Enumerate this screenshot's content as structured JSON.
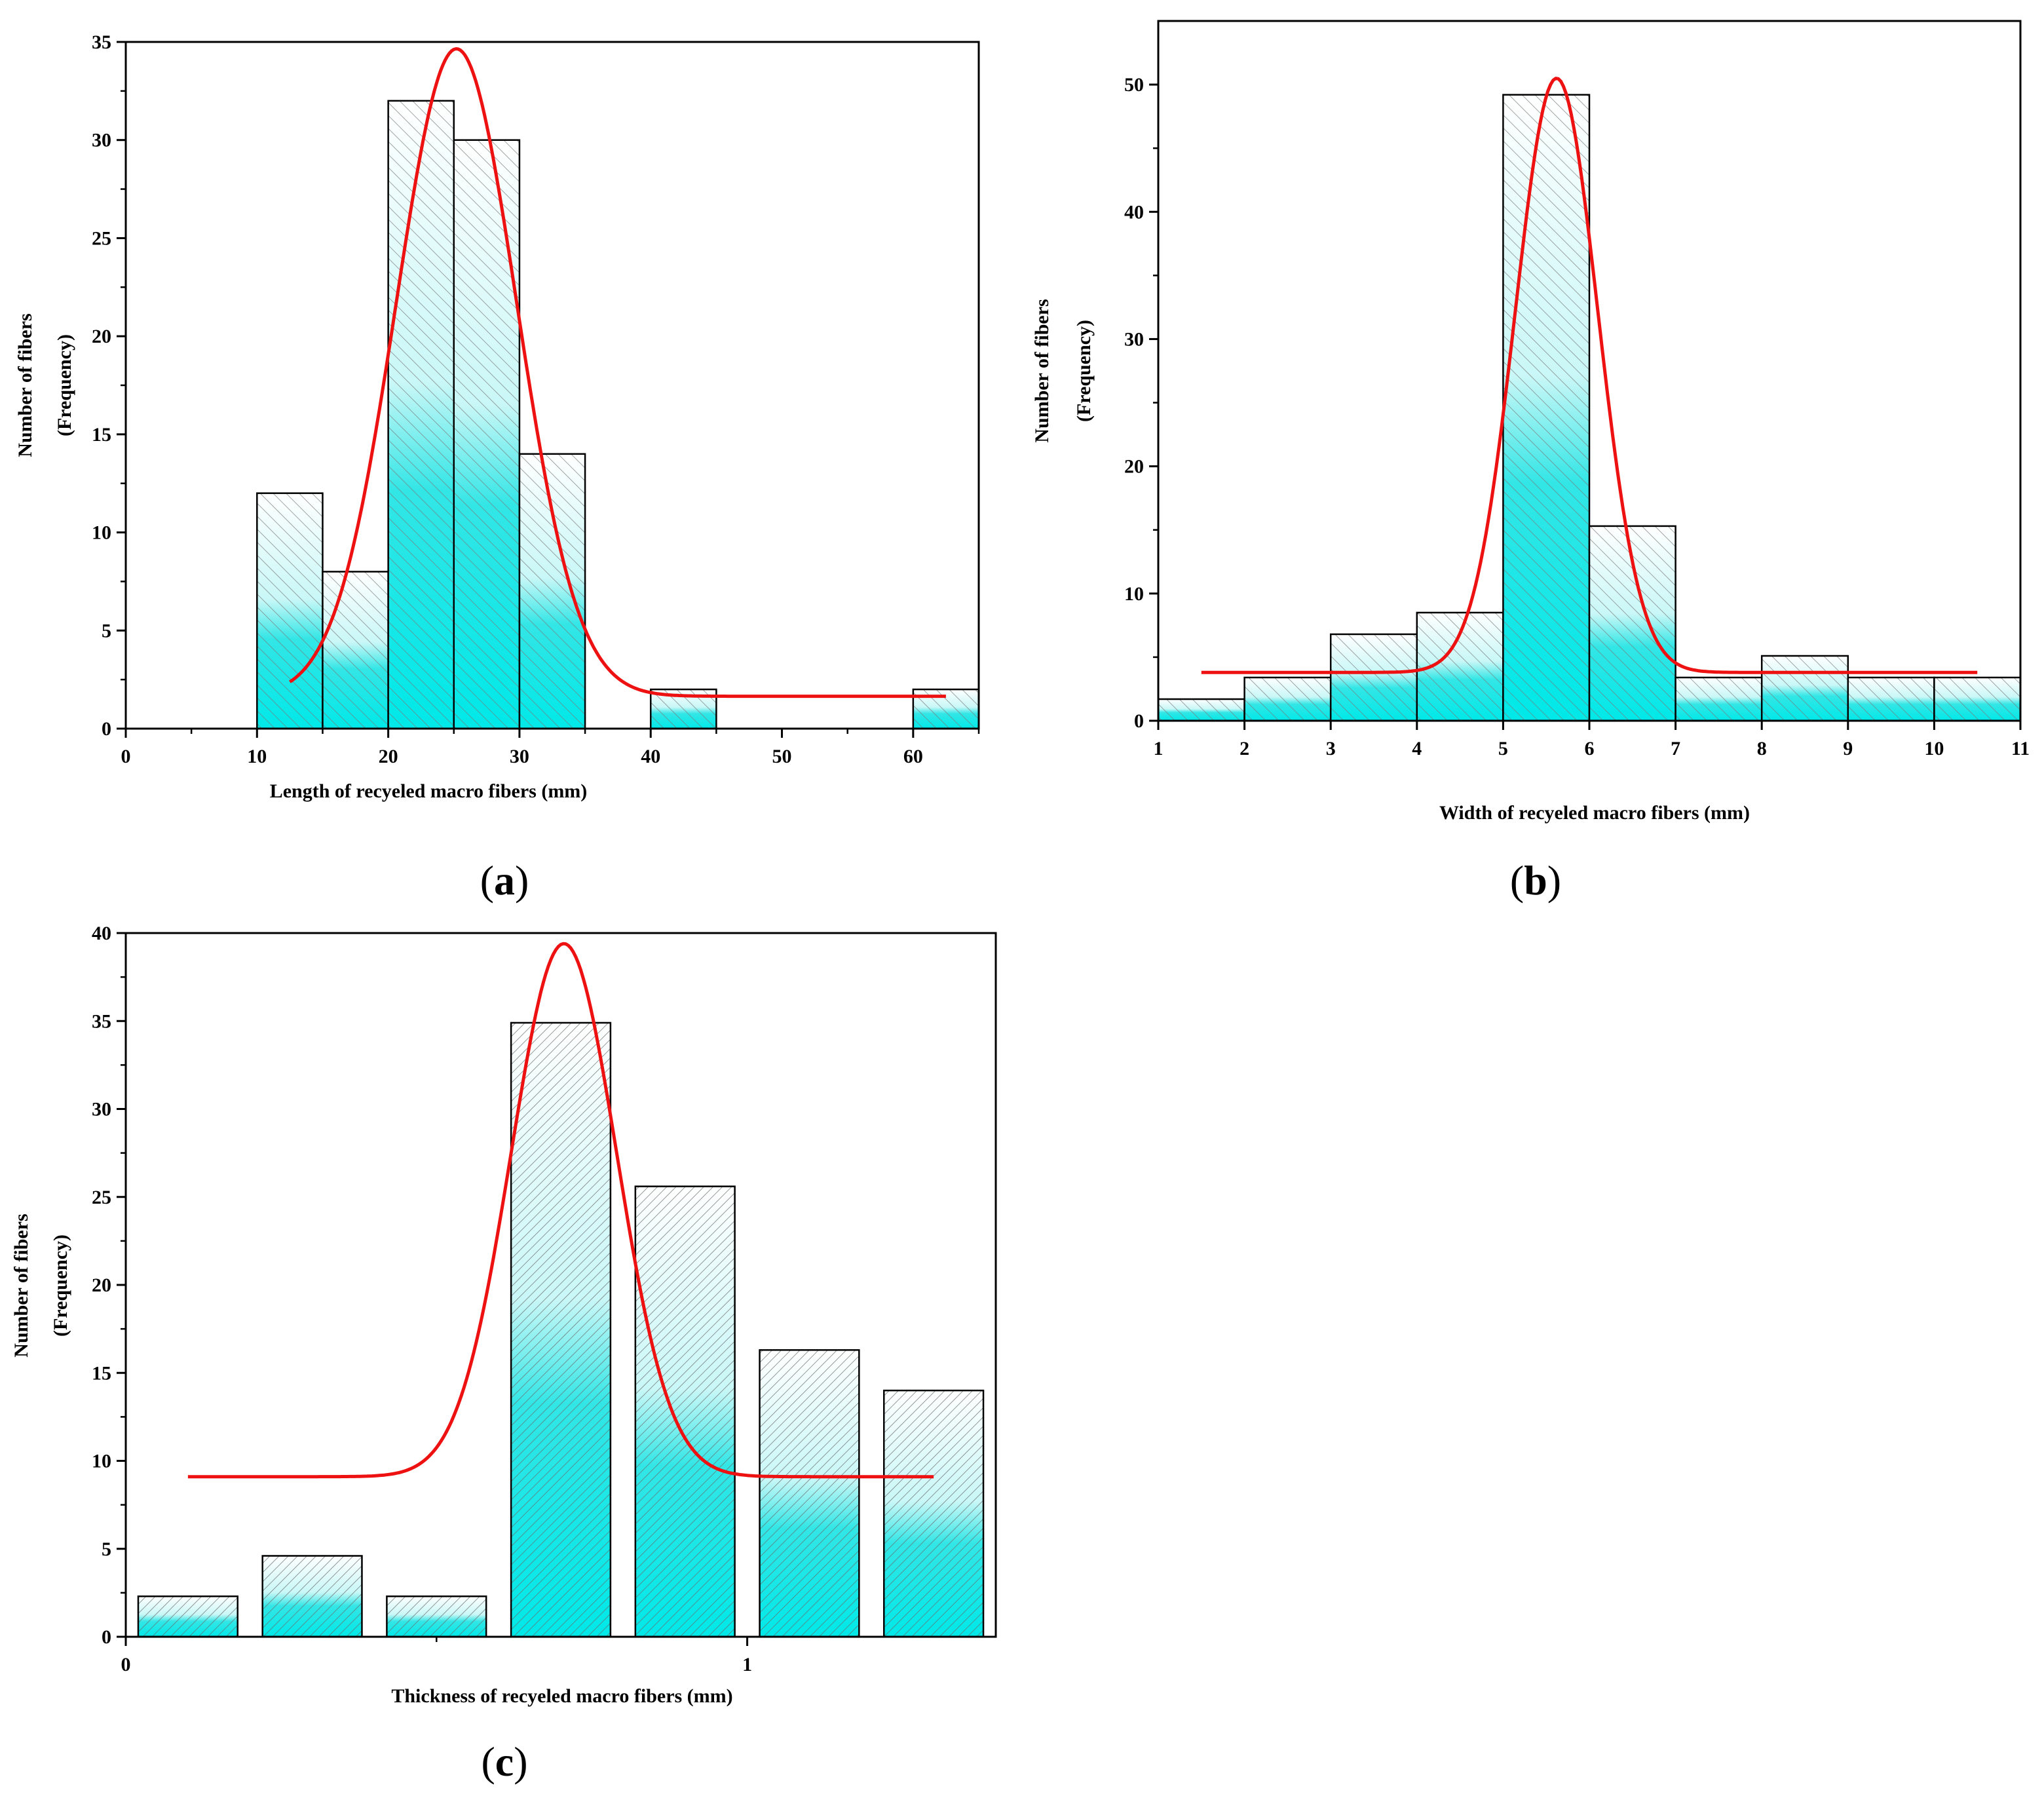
{
  "figure": {
    "panels": [
      "a",
      "b",
      "c"
    ]
  },
  "colors": {
    "bar_fill_top": "#ffffff",
    "bar_fill_bottom": "#00e8e8",
    "hatch": "#8a8a8a",
    "bar_edge": "#000000",
    "fit_curve": "#ee1111",
    "axis": "#000000"
  },
  "chart_data": [
    {
      "id": "a",
      "type": "bar",
      "panel_label": "a",
      "title": "",
      "xlabel": "Length of recyeled macro fibers (mm)",
      "ylabel": "Number of fibers",
      "ylabel2": "(Frequency)",
      "xlim": [
        0,
        65
      ],
      "ylim": [
        0,
        35
      ],
      "xticks": [
        0,
        10,
        20,
        30,
        40,
        50,
        60
      ],
      "xminor": [
        5,
        15,
        25,
        35,
        45,
        55,
        65
      ],
      "yticks": [
        0,
        5,
        10,
        15,
        20,
        25,
        30,
        35
      ],
      "grid": false,
      "bins": [
        {
          "x0": 10,
          "x1": 15,
          "value": 12
        },
        {
          "x0": 15,
          "x1": 20,
          "value": 8
        },
        {
          "x0": 20,
          "x1": 25,
          "value": 32
        },
        {
          "x0": 25,
          "x1": 30,
          "value": 30
        },
        {
          "x0": 30,
          "x1": 35,
          "value": 14
        },
        {
          "x0": 40,
          "x1": 45,
          "value": 2
        },
        {
          "x0": 60,
          "x1": 65,
          "value": 2
        }
      ],
      "fit": {
        "type": "gaussian",
        "baseline": 1.65,
        "amplitude": 33.0,
        "center": 25.2,
        "sigma": 4.6,
        "x_range": [
          12.5,
          62.5
        ]
      }
    },
    {
      "id": "b",
      "type": "bar",
      "panel_label": "b",
      "title": "",
      "xlabel": "Width of recyeled macro fibers (mm)",
      "ylabel": "Number of fibers",
      "ylabel2": "(Frequency)",
      "xlim": [
        1,
        11
      ],
      "ylim": [
        0,
        55
      ],
      "xticks": [
        1,
        2,
        3,
        4,
        5,
        6,
        7,
        8,
        9,
        10,
        11
      ],
      "xminor": [],
      "yticks": [
        0,
        10,
        20,
        30,
        40,
        50
      ],
      "grid": false,
      "bins": [
        {
          "x0": 1,
          "x1": 2,
          "value": 1.7
        },
        {
          "x0": 2,
          "x1": 3,
          "value": 3.4
        },
        {
          "x0": 3,
          "x1": 4,
          "value": 6.8
        },
        {
          "x0": 4,
          "x1": 5,
          "value": 8.5
        },
        {
          "x0": 5,
          "x1": 6,
          "value": 49.2
        },
        {
          "x0": 6,
          "x1": 7,
          "value": 15.3
        },
        {
          "x0": 7,
          "x1": 8,
          "value": 3.4
        },
        {
          "x0": 8,
          "x1": 9,
          "value": 5.1
        },
        {
          "x0": 9,
          "x1": 10,
          "value": 3.4
        },
        {
          "x0": 10,
          "x1": 11,
          "value": 3.4
        }
      ],
      "fit": {
        "type": "gaussian",
        "baseline": 3.8,
        "amplitude": 46.7,
        "center": 5.62,
        "sigma": 0.48,
        "x_range": [
          1.5,
          10.5
        ]
      }
    },
    {
      "id": "c",
      "type": "bar",
      "panel_label": "c",
      "title": "",
      "xlabel": "Thickness of recyeled macro fibers (mm)",
      "ylabel": "Number of fibers",
      "ylabel2": "(Frequency)",
      "xlim": [
        0,
        1.4
      ],
      "ylim": [
        0,
        40
      ],
      "xticks": [
        0,
        1
      ],
      "xminor": [
        0.5
      ],
      "yticks": [
        0,
        5,
        10,
        15,
        20,
        25,
        30,
        35,
        40
      ],
      "grid": false,
      "bins": [
        {
          "x0": 0.02,
          "x1": 0.18,
          "value": 2.3
        },
        {
          "x0": 0.22,
          "x1": 0.38,
          "value": 4.6
        },
        {
          "x0": 0.42,
          "x1": 0.58,
          "value": 2.3
        },
        {
          "x0": 0.62,
          "x1": 0.78,
          "value": 34.9
        },
        {
          "x0": 0.82,
          "x1": 0.98,
          "value": 25.6
        },
        {
          "x0": 1.02,
          "x1": 1.18,
          "value": 16.3
        },
        {
          "x0": 1.22,
          "x1": 1.38,
          "value": 14.0
        }
      ],
      "fit": {
        "type": "gaussian",
        "baseline": 9.1,
        "amplitude": 30.3,
        "center": 0.705,
        "sigma": 0.085,
        "x_range": [
          0.1,
          1.3
        ]
      }
    }
  ]
}
